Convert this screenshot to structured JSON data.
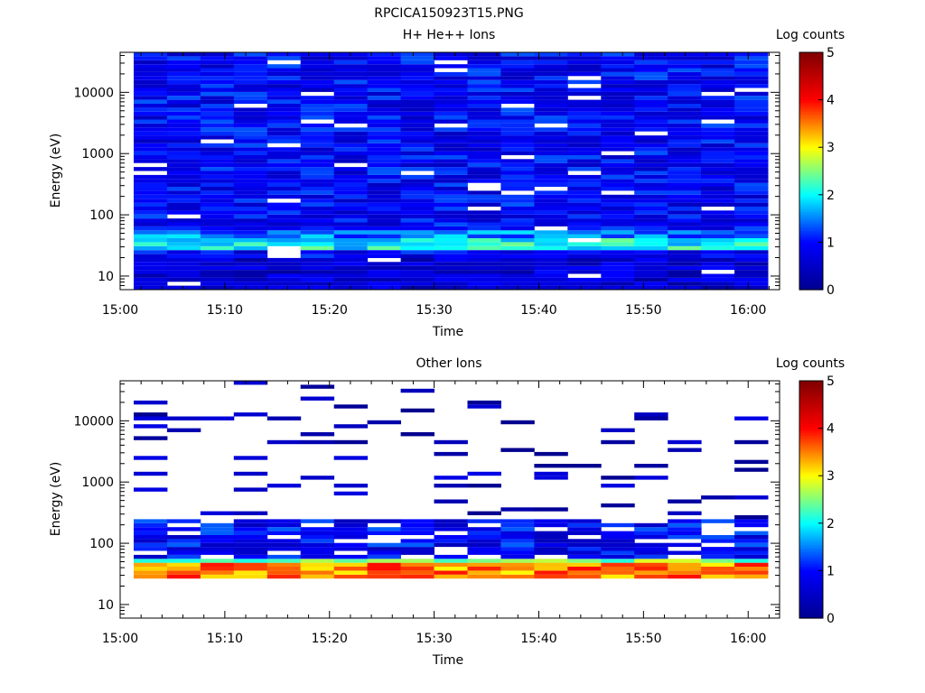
{
  "figure_title": "RPCICA150923T15.PNG",
  "colorscale": [
    "#00008f",
    "#0000ff",
    "#00ffff",
    "#ffff00",
    "#ff0000",
    "#800000"
  ],
  "chart_data": [
    {
      "type": "heatmap",
      "title": "H+ He++ Ions",
      "xlabel": "Time",
      "ylabel": "Energy (eV)",
      "y_scale": "log",
      "ylim": [
        6,
        45000
      ],
      "xlim": [
        "15:00",
        "16:03"
      ],
      "x_ticks": [
        "15:00",
        "15:10",
        "15:20",
        "15:30",
        "15:40",
        "15:50",
        "16:00"
      ],
      "y_ticks": [
        "10",
        "100",
        "1000",
        "10000"
      ],
      "colorbar": {
        "label": "Log counts",
        "ticks": [
          "0",
          "1",
          "2",
          "3",
          "4",
          "5"
        ],
        "range": [
          0,
          5
        ]
      },
      "time_bins": [
        "15:00:40",
        "15:04:00",
        "15:07:20",
        "15:10:40",
        "15:14:00",
        "15:17:20",
        "15:20:40",
        "15:24:00",
        "15:27:20",
        "15:30:40",
        "15:34:00",
        "15:37:20",
        "15:40:40",
        "15:44:00",
        "15:47:20",
        "15:50:40",
        "15:54:00",
        "15:57:20",
        "16:00:40"
      ],
      "background_level": 0.9,
      "features": [
        {
          "energy_range": [
            28,
            40
          ],
          "level": 2.0,
          "note": "enhanced band near 30 eV"
        },
        {
          "energy_range": [
            40,
            60
          ],
          "level": 1.5
        },
        {
          "energy_range": [
            6,
            20
          ],
          "level": 0.6
        }
      ]
    },
    {
      "type": "heatmap",
      "title": "Other Ions",
      "xlabel": "Time",
      "ylabel": "Energy (eV)",
      "y_scale": "log",
      "ylim": [
        6,
        45000
      ],
      "xlim": [
        "15:00",
        "16:03"
      ],
      "x_ticks": [
        "15:00",
        "15:10",
        "15:20",
        "15:30",
        "15:40",
        "15:50",
        "16:00"
      ],
      "y_ticks": [
        "10",
        "100",
        "1000",
        "10000"
      ],
      "colorbar": {
        "label": "Log counts",
        "ticks": [
          "0",
          "1",
          "2",
          "3",
          "4",
          "5"
        ],
        "range": [
          0,
          5
        ]
      },
      "time_bins": [
        "15:00:40",
        "15:04:00",
        "15:07:20",
        "15:10:40",
        "15:14:00",
        "15:17:20",
        "15:20:40",
        "15:24:00",
        "15:27:20",
        "15:30:40",
        "15:34:00",
        "15:37:20",
        "15:40:40",
        "15:44:00",
        "15:47:20",
        "15:50:40",
        "15:54:00",
        "15:57:20",
        "16:00:40"
      ],
      "features": [
        {
          "energy_range": [
            28,
            45
          ],
          "level": 3.5,
          "note": "heavy ion band near 35 eV"
        },
        {
          "energy_range": [
            45,
            60
          ],
          "level": 2.5
        },
        {
          "energy_range": [
            60,
            250
          ],
          "level": 0.9,
          "note": "patchy"
        },
        {
          "energy_range": [
            250,
            45000
          ],
          "level": 0.3,
          "note": "sparse single-count lines"
        }
      ]
    }
  ]
}
